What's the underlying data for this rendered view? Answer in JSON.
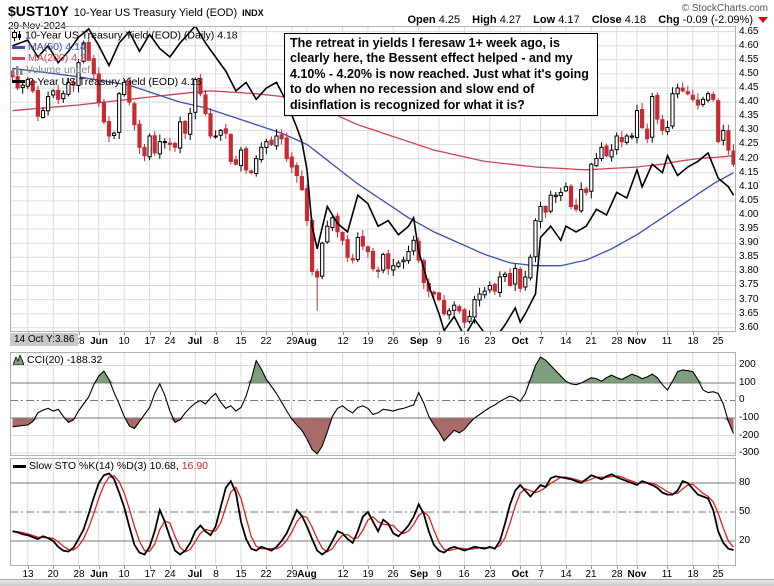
{
  "header": {
    "symbol": "$UST10Y",
    "title": "10-Year US Treasury Yield (EOD)",
    "exchange": "INDX",
    "date": "29-Nov-2024",
    "copyright": "© StockCharts.com",
    "ohlc": {
      "open_label": "Open",
      "open": "4.25",
      "high_label": "High",
      "high": "4.27",
      "low_label": "Low",
      "low": "4.17",
      "close_label": "Close",
      "close": "4.18",
      "chg_label": "Chg",
      "chg": "-0.09 (-2.09%)",
      "chg_direction": "down"
    }
  },
  "legend_main": [
    {
      "label": "10-Year US Treasury Yield (EOD) (Daily)",
      "value": "4.18",
      "color": "#000000"
    },
    {
      "label": "MA(50)",
      "value": "4.14",
      "color": "#3a4fae"
    },
    {
      "label": "MA(200)",
      "value": "4.21",
      "color": "#cc4455"
    },
    {
      "label": "Volume",
      "value": "undef",
      "color": "#888888"
    },
    {
      "label": "2-Year US Treasury Yield (EOD)",
      "value": "4.16",
      "color": "#000000"
    }
  ],
  "annotation": "The retreat in yields I feresaw 1+ week ago, is clearly here, the Bessent effect helped - and my 4.10% - 4.20% is now reached. Just what it's going to do when no recession and slow end of disinflation is recognized for what it is?",
  "crosshair_label": "14 Oct Y:3.86",
  "cci_legend": {
    "label": "CCI(20)",
    "value": "-188.32"
  },
  "sto_legend": {
    "label": "Slow STO %K(14) %D(3)",
    "k_value": "10.68,",
    "d_value": "16.90"
  },
  "chart_data": {
    "type": "candlestick",
    "title": "$UST10Y 10-Year US Treasury Yield (EOD) with MA(50), MA(200), 2-Year overlay, CCI(20), Slow Stochastics",
    "x_ticks": [
      {
        "i": 3,
        "label": "13",
        "bold": false
      },
      {
        "i": 8,
        "label": "20",
        "bold": false
      },
      {
        "i": 13,
        "label": "28",
        "bold": false
      },
      {
        "i": 17,
        "label": "Jun",
        "bold": true
      },
      {
        "i": 22,
        "label": "10",
        "bold": false
      },
      {
        "i": 27,
        "label": "17",
        "bold": false
      },
      {
        "i": 31,
        "label": "24",
        "bold": false
      },
      {
        "i": 36,
        "label": "Jul",
        "bold": true
      },
      {
        "i": 40,
        "label": "8",
        "bold": false
      },
      {
        "i": 45,
        "label": "15",
        "bold": false
      },
      {
        "i": 50,
        "label": "22",
        "bold": false
      },
      {
        "i": 55,
        "label": "29",
        "bold": false
      },
      {
        "i": 58,
        "label": "Aug",
        "bold": true
      },
      {
        "i": 65,
        "label": "12",
        "bold": false
      },
      {
        "i": 70,
        "label": "19",
        "bold": false
      },
      {
        "i": 75,
        "label": "26",
        "bold": false
      },
      {
        "i": 80,
        "label": "Sep",
        "bold": true
      },
      {
        "i": 84,
        "label": "9",
        "bold": false
      },
      {
        "i": 89,
        "label": "16",
        "bold": false
      },
      {
        "i": 94,
        "label": "23",
        "bold": false
      },
      {
        "i": 100,
        "label": "Oct",
        "bold": true
      },
      {
        "i": 104,
        "label": "7",
        "bold": false
      },
      {
        "i": 109,
        "label": "14",
        "bold": false
      },
      {
        "i": 114,
        "label": "21",
        "bold": false
      },
      {
        "i": 119,
        "label": "28",
        "bold": false
      },
      {
        "i": 123,
        "label": "Nov",
        "bold": true
      },
      {
        "i": 129,
        "label": "11",
        "bold": false
      },
      {
        "i": 134,
        "label": "18",
        "bold": false
      },
      {
        "i": 139,
        "label": "25",
        "bold": false
      }
    ],
    "main_panel": {
      "ylim": [
        3.585,
        4.67
      ],
      "yticks": [
        4.65,
        4.6,
        4.55,
        4.5,
        4.45,
        4.4,
        4.35,
        4.3,
        4.25,
        4.2,
        4.15,
        4.1,
        4.05,
        4.0,
        3.95,
        3.9,
        3.85,
        3.8,
        3.75,
        3.7,
        3.65,
        3.6
      ],
      "first_open": 4.51,
      "closes": [
        4.49,
        4.45,
        4.46,
        4.48,
        4.44,
        4.35,
        4.37,
        4.42,
        4.44,
        4.41,
        4.43,
        4.47,
        4.46,
        4.54,
        4.61,
        4.55,
        4.5,
        4.4,
        4.33,
        4.28,
        4.29,
        4.43,
        4.47,
        4.4,
        4.32,
        4.24,
        4.21,
        4.28,
        4.22,
        4.26,
        4.26,
        4.25,
        4.24,
        4.33,
        4.29,
        4.36,
        4.48,
        4.43,
        4.36,
        4.28,
        4.28,
        4.3,
        4.29,
        4.19,
        4.18,
        4.23,
        4.16,
        4.15,
        4.2,
        4.24,
        4.26,
        4.25,
        4.28,
        4.27,
        4.2,
        4.17,
        4.14,
        4.09,
        3.98,
        3.8,
        3.78,
        3.9,
        3.96,
        3.99,
        3.94,
        3.91,
        3.85,
        3.84,
        3.92,
        3.89,
        3.87,
        3.81,
        3.8,
        3.86,
        3.81,
        3.82,
        3.83,
        3.84,
        3.87,
        3.91,
        3.84,
        3.76,
        3.73,
        3.72,
        3.7,
        3.65,
        3.66,
        3.68,
        3.66,
        3.62,
        3.64,
        3.7,
        3.72,
        3.73,
        3.75,
        3.73,
        3.78,
        3.79,
        3.75,
        3.81,
        3.74,
        3.78,
        3.85,
        3.98,
        4.03,
        4.01,
        4.07,
        4.07,
        4.08,
        4.1,
        4.03,
        4.02,
        4.09,
        4.08,
        4.18,
        4.2,
        4.24,
        4.21,
        4.23,
        4.28,
        4.26,
        4.28,
        4.28,
        4.37,
        4.31,
        4.27,
        4.42,
        4.34,
        4.3,
        4.31,
        4.43,
        4.45,
        4.44,
        4.43,
        4.41,
        4.39,
        4.41,
        4.43,
        4.41,
        4.26,
        4.3,
        4.23,
        4.18
      ],
      "wick_overrides": {
        "60": {
          "low": 3.66
        },
        "142": {
          "high": 4.25,
          "low": 4.17
        }
      },
      "colors": {
        "down": "#c82a32",
        "up_stroke": "#000000",
        "ma50": "#3a4fae",
        "ma200": "#cc4455",
        "treasury_2y": "#000000"
      },
      "overlays": {
        "ma50_points": [
          [
            0,
            4.52
          ],
          [
            13,
            4.49
          ],
          [
            23,
            4.46
          ],
          [
            33,
            4.4
          ],
          [
            38,
            4.38
          ],
          [
            43,
            4.35
          ],
          [
            48,
            4.32
          ],
          [
            53,
            4.29
          ],
          [
            58,
            4.25
          ],
          [
            63,
            4.18
          ],
          [
            68,
            4.11
          ],
          [
            73,
            4.05
          ],
          [
            78,
            3.99
          ],
          [
            83,
            3.94
          ],
          [
            88,
            3.9
          ],
          [
            93,
            3.86
          ],
          [
            98,
            3.83
          ],
          [
            103,
            3.82
          ],
          [
            108,
            3.82
          ],
          [
            113,
            3.84
          ],
          [
            118,
            3.88
          ],
          [
            123,
            3.93
          ],
          [
            128,
            3.99
          ],
          [
            133,
            4.05
          ],
          [
            138,
            4.11
          ],
          [
            142,
            4.15
          ]
        ],
        "ma200_points": [
          [
            0,
            4.37
          ],
          [
            13,
            4.39
          ],
          [
            23,
            4.41
          ],
          [
            33,
            4.43
          ],
          [
            39,
            4.44
          ],
          [
            48,
            4.43
          ],
          [
            53,
            4.42
          ],
          [
            58,
            4.4
          ],
          [
            63,
            4.36
          ],
          [
            68,
            4.32
          ],
          [
            73,
            4.29
          ],
          [
            78,
            4.26
          ],
          [
            83,
            4.23
          ],
          [
            88,
            4.21
          ],
          [
            93,
            4.19
          ],
          [
            98,
            4.18
          ],
          [
            103,
            4.17
          ],
          [
            108,
            4.165
          ],
          [
            113,
            4.16
          ],
          [
            118,
            4.165
          ],
          [
            123,
            4.17
          ],
          [
            128,
            4.18
          ],
          [
            131,
            4.19
          ],
          [
            135,
            4.2
          ],
          [
            139,
            4.205
          ],
          [
            142,
            4.21
          ]
        ],
        "treasury_2y_points": [
          [
            0,
            4.6
          ],
          [
            3,
            4.62
          ],
          [
            5,
            4.56
          ],
          [
            7,
            4.6
          ],
          [
            9,
            4.54
          ],
          [
            11,
            4.58
          ],
          [
            13,
            4.63
          ],
          [
            15,
            4.66
          ],
          [
            17,
            4.6
          ],
          [
            19,
            4.53
          ],
          [
            21,
            4.61
          ],
          [
            23,
            4.65
          ],
          [
            25,
            4.58
          ],
          [
            27,
            4.64
          ],
          [
            29,
            4.59
          ],
          [
            31,
            4.56
          ],
          [
            33,
            4.61
          ],
          [
            35,
            4.65
          ],
          [
            36,
            4.67
          ],
          [
            38,
            4.61
          ],
          [
            40,
            4.56
          ],
          [
            42,
            4.51
          ],
          [
            44,
            4.44
          ],
          [
            46,
            4.47
          ],
          [
            48,
            4.41
          ],
          [
            50,
            4.45
          ],
          [
            52,
            4.47
          ],
          [
            54,
            4.4
          ],
          [
            56,
            4.31
          ],
          [
            57,
            4.26
          ],
          [
            58,
            4.16
          ],
          [
            59,
            3.96
          ],
          [
            60,
            3.88
          ],
          [
            62,
            4.03
          ],
          [
            64,
            3.97
          ],
          [
            66,
            3.94
          ],
          [
            68,
            4.07
          ],
          [
            70,
            4.04
          ],
          [
            72,
            3.96
          ],
          [
            74,
            3.98
          ],
          [
            76,
            3.93
          ],
          [
            78,
            3.96
          ],
          [
            79,
            3.99
          ],
          [
            80,
            3.87
          ],
          [
            82,
            3.75
          ],
          [
            84,
            3.65
          ],
          [
            85,
            3.59
          ],
          [
            87,
            3.64
          ],
          [
            89,
            3.57
          ],
          [
            91,
            3.63
          ],
          [
            93,
            3.58
          ],
          [
            95,
            3.56
          ],
          [
            97,
            3.61
          ],
          [
            99,
            3.67
          ],
          [
            100,
            3.62
          ],
          [
            101,
            3.65
          ],
          [
            103,
            3.72
          ],
          [
            104,
            3.92
          ],
          [
            106,
            3.96
          ],
          [
            108,
            3.91
          ],
          [
            109,
            3.96
          ],
          [
            111,
            3.94
          ],
          [
            113,
            3.96
          ],
          [
            115,
            4.02
          ],
          [
            117,
            4.0
          ],
          [
            119,
            4.08
          ],
          [
            121,
            4.06
          ],
          [
            123,
            4.16
          ],
          [
            124,
            4.1
          ],
          [
            126,
            4.18
          ],
          [
            128,
            4.15
          ],
          [
            129,
            4.21
          ],
          [
            131,
            4.14
          ],
          [
            133,
            4.17
          ],
          [
            135,
            4.19
          ],
          [
            137,
            4.22
          ],
          [
            139,
            4.13
          ],
          [
            141,
            4.1
          ],
          [
            142,
            4.07
          ]
        ]
      }
    },
    "cci_panel": {
      "ylim": [
        -317,
        277
      ],
      "yticks": [
        200,
        100,
        0,
        -100,
        -200,
        -300
      ],
      "overbought": 100,
      "oversold": -100,
      "midline": 0,
      "fill_above_color": "#7d9f7d",
      "fill_below_color": "#a96a6a",
      "values": [
        -150,
        -147,
        -143,
        -140,
        -120,
        -70,
        -55,
        -45,
        -60,
        -50,
        -90,
        -125,
        -110,
        -60,
        -20,
        20,
        90,
        140,
        168,
        120,
        45,
        -20,
        -90,
        -145,
        -160,
        -120,
        -80,
        -40,
        40,
        95,
        30,
        -60,
        -125,
        -110,
        -70,
        -40,
        -15,
        0,
        -20,
        15,
        40,
        -10,
        -45,
        -30,
        -60,
        -40,
        25,
        120,
        228,
        180,
        120,
        80,
        40,
        -10,
        -60,
        -105,
        -140,
        -170,
        -220,
        -280,
        -305,
        -260,
        -180,
        -90,
        -45,
        -30,
        -55,
        -70,
        -40,
        -30,
        -45,
        -80,
        -70,
        -50,
        -55,
        -60,
        -50,
        -45,
        -35,
        -25,
        45,
        -15,
        -90,
        -140,
        -180,
        -230,
        -200,
        -170,
        -185,
        -165,
        -130,
        -100,
        -80,
        -60,
        -40,
        -25,
        -5,
        10,
        25,
        15,
        -5,
        40,
        120,
        200,
        248,
        230,
        200,
        170,
        140,
        110,
        95,
        90,
        100,
        115,
        130,
        125,
        110,
        130,
        145,
        130,
        120,
        135,
        150,
        140,
        125,
        135,
        150,
        130,
        90,
        60,
        110,
        165,
        175,
        170,
        165,
        120,
        60,
        45,
        50,
        40,
        -20,
        -120,
        -188.32
      ]
    },
    "sto_panel": {
      "ylim": [
        -5.9,
        105.9
      ],
      "yticks": [
        80,
        50,
        20
      ],
      "upper": 80,
      "lower": 20,
      "midline": 50,
      "k_color": "#000000",
      "d_color": "#dd2222",
      "k_values": [
        30,
        29,
        27,
        26,
        24,
        22,
        25,
        23,
        20,
        14,
        10,
        9,
        13,
        22,
        32,
        48,
        65,
        80,
        88,
        90,
        84,
        70,
        55,
        35,
        16,
        8,
        6,
        14,
        30,
        52,
        40,
        24,
        10,
        6,
        10,
        18,
        30,
        36,
        30,
        26,
        35,
        55,
        75,
        82,
        70,
        40,
        22,
        12,
        10,
        14,
        12,
        10,
        14,
        20,
        28,
        40,
        52,
        46,
        35,
        22,
        10,
        6,
        10,
        20,
        30,
        28,
        22,
        18,
        30,
        45,
        50,
        40,
        30,
        42,
        38,
        28,
        25,
        30,
        36,
        45,
        58,
        48,
        30,
        16,
        10,
        8,
        12,
        14,
        12,
        10,
        12,
        14,
        13,
        12,
        14,
        12,
        20,
        38,
        58,
        72,
        78,
        72,
        66,
        72,
        78,
        76,
        85,
        87,
        86,
        85,
        84,
        82,
        80,
        84,
        88,
        86,
        84,
        87,
        89,
        86,
        84,
        82,
        80,
        78,
        82,
        80,
        78,
        75,
        70,
        68,
        68,
        72,
        82,
        80,
        74,
        68,
        66,
        64,
        52,
        30,
        18,
        12,
        10.68
      ]
    }
  }
}
